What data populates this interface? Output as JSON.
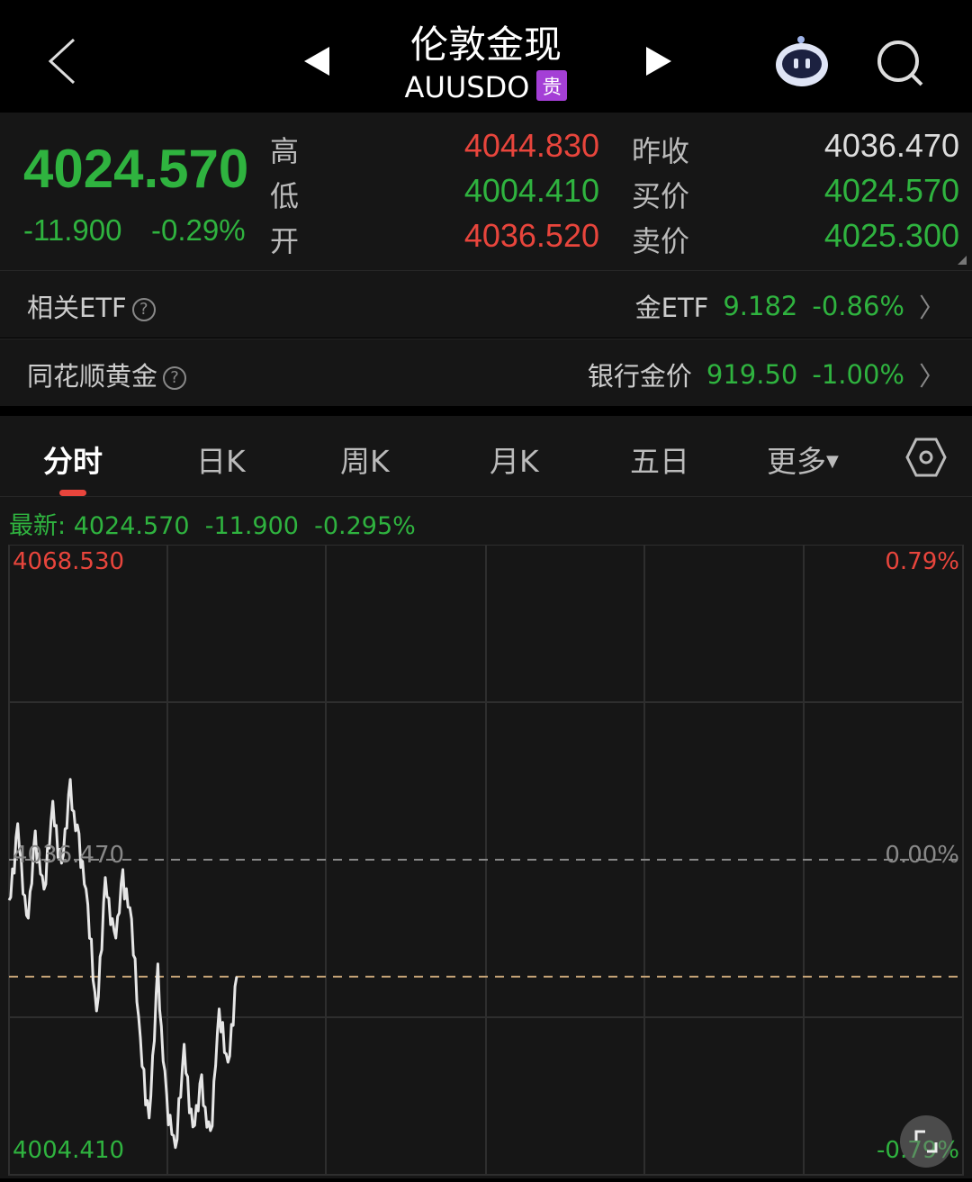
{
  "header": {
    "title": "伦敦金现",
    "code": "AUUSDO",
    "badge": "贵",
    "back_icon": "chevron-left-icon",
    "prev_icon": "triangle-left-icon",
    "next_icon": "triangle-right-icon",
    "assistant_icon": "robot-icon",
    "search_icon": "search-icon"
  },
  "quote": {
    "price": "4024.570",
    "change": "-11.900",
    "change_pct": "-0.29%",
    "stats": [
      {
        "label": "高",
        "value": "4044.830",
        "color": "red"
      },
      {
        "label": "低",
        "value": "4004.410",
        "color": "green"
      },
      {
        "label": "开",
        "value": "4036.520",
        "color": "red"
      }
    ],
    "stats2": [
      {
        "label": "昨收",
        "value": "4036.470",
        "color": "white"
      },
      {
        "label": "买价",
        "value": "4024.570",
        "color": "green"
      },
      {
        "label": "卖价",
        "value": "4025.300",
        "color": "green"
      }
    ]
  },
  "related": [
    {
      "label": "相关ETF",
      "name": "金ETF",
      "value": "9.182",
      "pct": "-0.86%"
    },
    {
      "label": "同花顺黄金",
      "name": "银行金价",
      "value": "919.50",
      "pct": "-1.00%"
    }
  ],
  "tabs": [
    {
      "label": "分时",
      "active": true
    },
    {
      "label": "日K"
    },
    {
      "label": "周K"
    },
    {
      "label": "月K"
    },
    {
      "label": "五日"
    },
    {
      "label": "更多"
    }
  ],
  "latest": {
    "label": "最新:",
    "price": "4024.570",
    "change": "-11.900",
    "pct": "-0.295%"
  },
  "colors": {
    "up": "#e8453c",
    "down": "#2fb33f",
    "line": "#e6e6e6",
    "current_line": "#c9a679"
  },
  "chart_data": {
    "type": "line",
    "y_max": "4068.530",
    "y_min": "4004.410",
    "y_mid": "4036.470",
    "pct_max": "0.79%",
    "pct_mid": "0.00%",
    "pct_min": "-0.79%",
    "ylim": [
      4004.41,
      4068.53
    ],
    "current": 4024.57,
    "series": [
      {
        "values": [
          4032.35,
          4039.4,
          4029.33,
          4039.03,
          4032.35,
          4042.42,
          4035.37,
          4043.16,
          4038.76,
          4030.79,
          4021.08,
          4033.91,
          4027.77,
          4035.1,
          4029.33,
          4018.33,
          4009.45,
          4024.38,
          4012.2,
          4006.06,
          4017.69,
          4008.53,
          4013.11,
          4008.53,
          4020.17,
          4015.86,
          4024.57
        ]
      }
    ]
  }
}
